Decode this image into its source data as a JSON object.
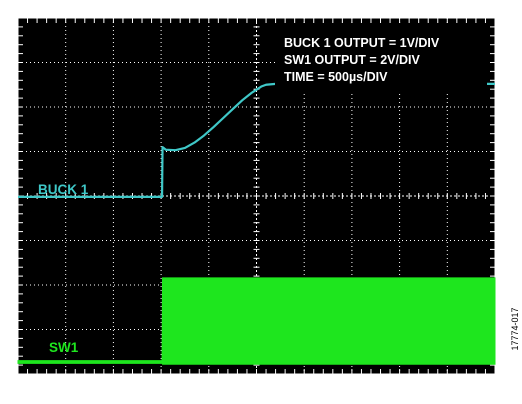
{
  "figure_id": "17774-017",
  "colors": {
    "background": "#000000",
    "grid": "#ffffff",
    "buck1_trace": "#3fc8c8",
    "buck1_label": "#3fc8c8",
    "sw1_trace": "#1ee61e",
    "sw1_label": "#1ee61e",
    "annotation_box": "#000000",
    "annotation_text": "#ffffff"
  },
  "chart_data": {
    "type": "line",
    "title": "",
    "xlabel": "",
    "ylabel": "",
    "grid": true,
    "divisions": {
      "x": 10,
      "y": 8
    },
    "xlim": [
      0,
      10
    ],
    "ylim": [
      0,
      8
    ],
    "annotations": [
      "BUCK 1 OUTPUT = 1V/DIV",
      "SW1 OUTPUT = 2V/DIV",
      "TIME = 500µs/DIV"
    ],
    "series": [
      {
        "name": "BUCK 1",
        "x": [
          0,
          3.02,
          3.03,
          3.1,
          3.3,
          3.5,
          3.7,
          3.9,
          4.1,
          4.3,
          4.5,
          4.7,
          4.9,
          5.1,
          5.2,
          5.4,
          6.0,
          8.0,
          10.0
        ],
        "y": [
          3.98,
          3.98,
          5.1,
          5.04,
          5.03,
          5.08,
          5.2,
          5.36,
          5.55,
          5.75,
          5.95,
          6.15,
          6.32,
          6.46,
          6.5,
          6.52,
          6.52,
          6.52,
          6.52
        ]
      },
      {
        "name": "SW1",
        "type": "band",
        "x": [
          0,
          3.02,
          3.03,
          10.0
        ],
        "y_low": [
          0.24,
          0.24,
          0.22,
          0.22
        ],
        "y_high": [
          0.3,
          0.3,
          2.16,
          2.16
        ]
      }
    ]
  },
  "labels": {
    "buck1": "BUCK 1",
    "sw1": "SW1"
  }
}
